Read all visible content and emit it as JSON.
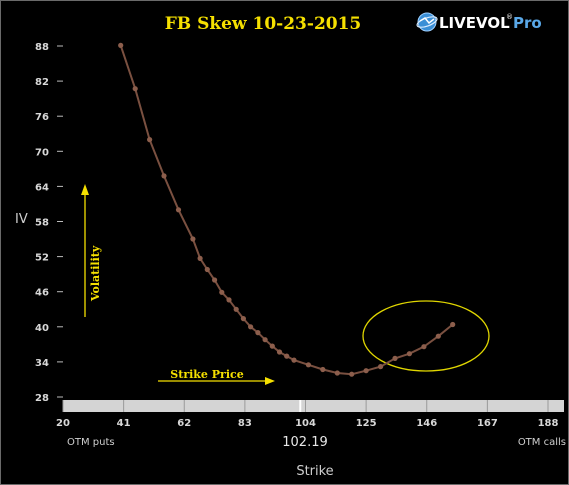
{
  "chart_data": {
    "type": "line",
    "title": "FB Skew 10-23-2015",
    "xlabel": "Strike",
    "ylabel": "IV",
    "xlim": [
      20,
      188
    ],
    "ylim": [
      28,
      88
    ],
    "xticks": [
      20,
      41,
      62,
      83,
      104,
      125,
      146,
      167,
      188
    ],
    "yticks": [
      28,
      34,
      40,
      46,
      52,
      58,
      64,
      70,
      76,
      82,
      88
    ],
    "spot_price": 102.19,
    "spot_label": "102.19",
    "left_label": "OTM puts",
    "right_label": "OTM calls",
    "annotations": {
      "volatility": "Volatility",
      "strike_price": "Strike Price"
    },
    "series": [
      {
        "x": [
          40,
          45,
          50,
          55,
          60,
          65,
          67.5,
          70,
          72.5,
          75,
          77.5,
          80,
          82.5,
          85,
          87.5,
          90,
          92.5,
          95,
          97.5,
          100,
          105,
          110,
          115,
          120,
          125,
          130,
          135,
          140,
          145,
          150,
          155
        ],
        "y": [
          88.1,
          80.7,
          72.0,
          65.8,
          60.0,
          55.0,
          51.7,
          49.8,
          48.0,
          45.9,
          44.6,
          43.0,
          41.4,
          40.0,
          39.0,
          37.8,
          36.7,
          35.7,
          35.0,
          34.3,
          33.5,
          32.7,
          32.1,
          31.9,
          32.5,
          33.2,
          34.6,
          35.4,
          36.6,
          38.4,
          40.4
        ],
        "color": "#7a5040"
      }
    ],
    "legend": "none",
    "grid": false
  },
  "logo": {
    "name": "LIVEVOL",
    "registered": "®",
    "suffix": "Pro",
    "icon": "globe-icon"
  },
  "colors": {
    "background": "#000000",
    "line": "#7a5040",
    "marker": "#8c5e4c",
    "annotation": "#f5e000",
    "x_axis_bar": "#d4d4d4"
  }
}
